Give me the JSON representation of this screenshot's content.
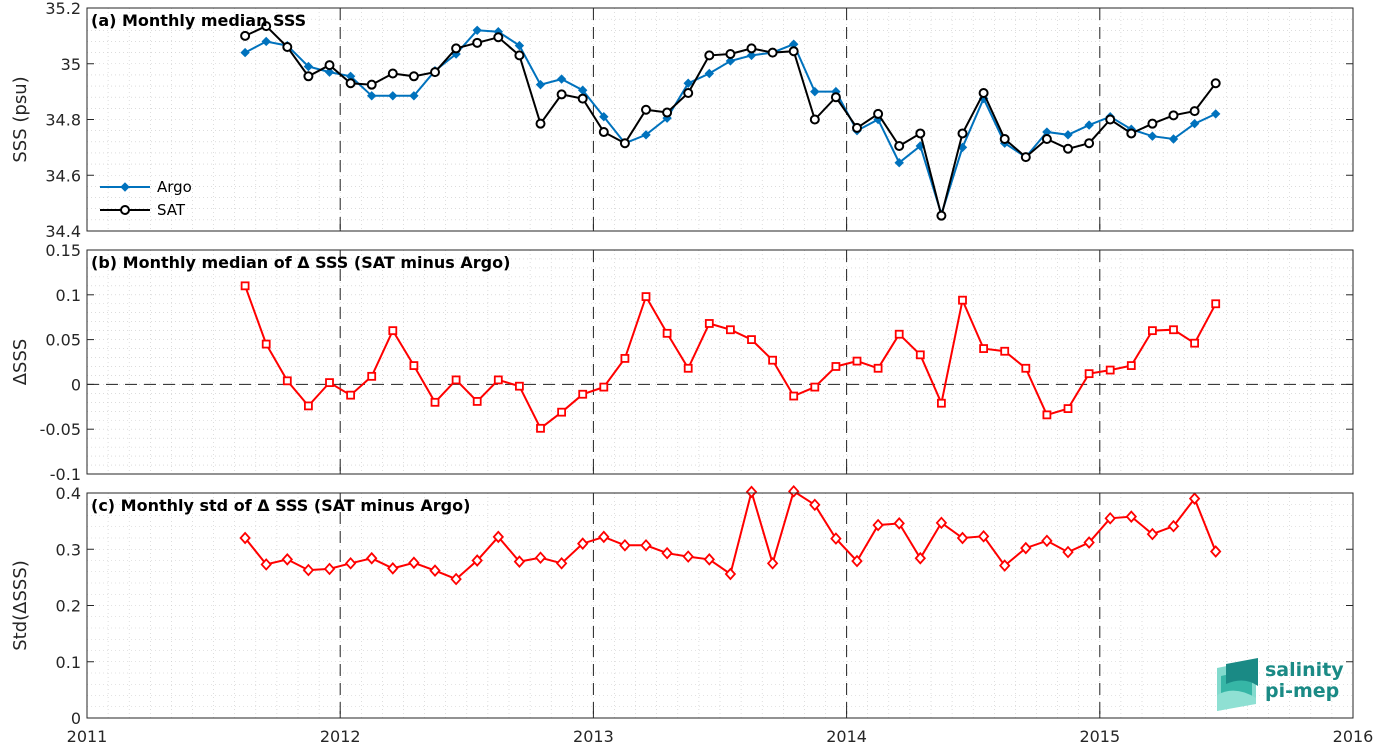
{
  "colors": {
    "argo": "#0072BD",
    "sat": "#000000",
    "delta": "#FF0000",
    "logo": "#1a8a85"
  },
  "logo": {
    "line1": "salinity",
    "line2": "pi-mep"
  },
  "chart_data": [
    {
      "type": "line",
      "title": "(a) Monthly median SSS",
      "ylabel": "SSS (psu)",
      "ylim": [
        34.4,
        35.2
      ],
      "yticks": [
        "34.4",
        "34.6",
        "34.8",
        "35",
        "35.2"
      ],
      "xticks": [
        "2011",
        "2012",
        "2013",
        "2014",
        "2015",
        "2016"
      ],
      "xlim": [
        2011,
        2016
      ],
      "legend": "bottom-left",
      "grid": true,
      "x": [
        "2011-08",
        "2011-09",
        "2011-10",
        "2011-11",
        "2011-12",
        "2012-01",
        "2012-02",
        "2012-03",
        "2012-04",
        "2012-05",
        "2012-06",
        "2012-07",
        "2012-08",
        "2012-09",
        "2012-10",
        "2012-11",
        "2012-12",
        "2013-01",
        "2013-02",
        "2013-03",
        "2013-04",
        "2013-05",
        "2013-06",
        "2013-07",
        "2013-08",
        "2013-09",
        "2013-10",
        "2013-11",
        "2013-12",
        "2014-01",
        "2014-02",
        "2014-03",
        "2014-04",
        "2014-05",
        "2014-06",
        "2014-07",
        "2014-08",
        "2014-09",
        "2014-10",
        "2014-11",
        "2014-12",
        "2015-01",
        "2015-02",
        "2015-03",
        "2015-04",
        "2015-05",
        "2015-06"
      ],
      "series": [
        {
          "name": "Argo",
          "marker": "diamond",
          "values": [
            35.04,
            35.08,
            35.065,
            34.99,
            34.97,
            34.955,
            34.885,
            34.885,
            34.885,
            34.975,
            35.035,
            35.12,
            35.115,
            35.065,
            34.925,
            34.945,
            34.905,
            34.81,
            34.715,
            34.745,
            34.805,
            34.93,
            34.965,
            35.01,
            35.03,
            35.04,
            35.07,
            34.9,
            34.9,
            34.76,
            34.8,
            34.645,
            34.705,
            34.46,
            34.7,
            34.875,
            34.715,
            34.665,
            34.755,
            34.745,
            34.78,
            34.81,
            34.765,
            34.74,
            34.73,
            34.785,
            34.82
          ]
        },
        {
          "name": "SAT",
          "marker": "circle",
          "values": [
            35.1,
            35.135,
            35.06,
            34.955,
            34.995,
            34.93,
            34.925,
            34.965,
            34.955,
            34.97,
            35.055,
            35.075,
            35.095,
            35.03,
            34.785,
            34.89,
            34.875,
            34.755,
            34.715,
            34.835,
            34.825,
            34.895,
            35.03,
            35.035,
            35.055,
            35.04,
            35.045,
            34.8,
            34.88,
            34.77,
            34.82,
            34.705,
            34.75,
            34.455,
            34.75,
            34.895,
            34.73,
            34.665,
            34.73,
            34.695,
            34.715,
            34.8,
            34.75,
            34.785,
            34.815,
            34.83,
            34.93
          ]
        }
      ]
    },
    {
      "type": "line",
      "title": "(b) Monthly median of Δ SSS (SAT minus Argo)",
      "ylabel": "ΔSSS",
      "ylim": [
        -0.1,
        0.15
      ],
      "yticks": [
        "-0.1",
        "-0.05",
        "0",
        "0.05",
        "0.1",
        "0.15"
      ],
      "xticks": [
        "2011",
        "2012",
        "2013",
        "2014",
        "2015",
        "2016"
      ],
      "xlim": [
        2011,
        2016
      ],
      "grid": true,
      "zero_line": true,
      "x": [
        "2011-08",
        "2011-09",
        "2011-10",
        "2011-11",
        "2011-12",
        "2012-01",
        "2012-02",
        "2012-03",
        "2012-04",
        "2012-05",
        "2012-06",
        "2012-07",
        "2012-08",
        "2012-09",
        "2012-10",
        "2012-11",
        "2012-12",
        "2013-01",
        "2013-02",
        "2013-03",
        "2013-04",
        "2013-05",
        "2013-06",
        "2013-07",
        "2013-08",
        "2013-09",
        "2013-10",
        "2013-11",
        "2013-12",
        "2014-01",
        "2014-02",
        "2014-03",
        "2014-04",
        "2014-05",
        "2014-06",
        "2014-07",
        "2014-08",
        "2014-09",
        "2014-10",
        "2014-11",
        "2014-12",
        "2015-01",
        "2015-02",
        "2015-03",
        "2015-04",
        "2015-05",
        "2015-06"
      ],
      "series": [
        {
          "name": "",
          "marker": "square",
          "values": [
            0.11,
            0.045,
            0.004,
            -0.024,
            0.002,
            -0.012,
            0.009,
            0.06,
            0.021,
            -0.02,
            0.005,
            -0.019,
            0.005,
            -0.002,
            -0.049,
            -0.031,
            -0.011,
            -0.003,
            0.029,
            0.098,
            0.057,
            0.018,
            0.068,
            0.061,
            0.05,
            0.027,
            -0.013,
            -0.003,
            0.02,
            0.026,
            0.018,
            0.056,
            0.033,
            -0.021,
            0.094,
            0.04,
            0.037,
            0.018,
            -0.034,
            -0.027,
            0.012,
            0.016,
            0.021,
            0.06,
            0.061,
            0.046,
            0.09
          ]
        }
      ]
    },
    {
      "type": "line",
      "title": "(c) Monthly std of Δ SSS (SAT minus Argo)",
      "ylabel": "Std(ΔSSS)",
      "ylim": [
        0,
        0.4
      ],
      "yticks": [
        "0",
        "0.1",
        "0.2",
        "0.3",
        "0.4"
      ],
      "xticks": [
        "2011",
        "2012",
        "2013",
        "2014",
        "2015",
        "2016"
      ],
      "xlim": [
        2011,
        2016
      ],
      "grid": true,
      "x": [
        "2011-08",
        "2011-09",
        "2011-10",
        "2011-11",
        "2011-12",
        "2012-01",
        "2012-02",
        "2012-03",
        "2012-04",
        "2012-05",
        "2012-06",
        "2012-07",
        "2012-08",
        "2012-09",
        "2012-10",
        "2012-11",
        "2012-12",
        "2013-01",
        "2013-02",
        "2013-03",
        "2013-04",
        "2013-05",
        "2013-06",
        "2013-07",
        "2013-08",
        "2013-09",
        "2013-10",
        "2013-11",
        "2013-12",
        "2014-01",
        "2014-02",
        "2014-03",
        "2014-04",
        "2014-05",
        "2014-06",
        "2014-07",
        "2014-08",
        "2014-09",
        "2014-10",
        "2014-11",
        "2014-12",
        "2015-01",
        "2015-02",
        "2015-03",
        "2015-04",
        "2015-05",
        "2015-06"
      ],
      "series": [
        {
          "name": "",
          "marker": "diamond-open",
          "values": [
            0.32,
            0.273,
            0.282,
            0.263,
            0.265,
            0.275,
            0.284,
            0.266,
            0.276,
            0.262,
            0.247,
            0.28,
            0.322,
            0.278,
            0.285,
            0.275,
            0.31,
            0.322,
            0.307,
            0.307,
            0.293,
            0.287,
            0.282,
            0.256,
            0.402,
            0.275,
            0.403,
            0.379,
            0.319,
            0.279,
            0.343,
            0.346,
            0.284,
            0.347,
            0.32,
            0.323,
            0.271,
            0.302,
            0.315,
            0.295,
            0.312,
            0.355,
            0.358,
            0.327,
            0.341,
            0.39,
            0.296
          ]
        }
      ]
    }
  ]
}
